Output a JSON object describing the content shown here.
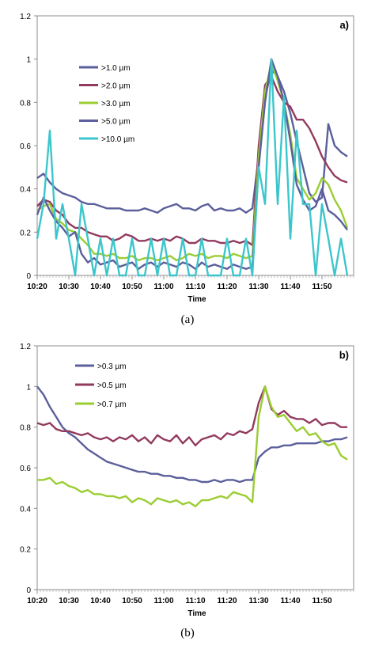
{
  "figure": {
    "caption_a": "(a)",
    "caption_b": "(b)"
  },
  "chart_data": [
    {
      "type": "line",
      "panel_label": "a)",
      "xlabel": "Time",
      "ylabel": "",
      "ylim": [
        0,
        1.2
      ],
      "yticks": [
        "0",
        "0.2",
        "0.4",
        "0.6",
        "0.8",
        "1",
        "1.2"
      ],
      "xlim": [
        "10:20",
        "12:00"
      ],
      "xticks": [
        "10:20",
        "10:30",
        "10:40",
        "10:50",
        "11:00",
        "11:10",
        "11:20",
        "11:30",
        "11:40",
        "11:50"
      ],
      "grid": false,
      "legend": "top-left",
      "series": [
        {
          "name": ">1.0 µm",
          "color": "#5b5f9b",
          "x": [
            "10:20",
            "10:22",
            "10:24",
            "10:26",
            "10:28",
            "10:30",
            "10:32",
            "10:34",
            "10:36",
            "10:38",
            "10:40",
            "10:42",
            "10:44",
            "10:46",
            "10:48",
            "10:50",
            "10:52",
            "10:54",
            "10:56",
            "10:58",
            "11:00",
            "11:02",
            "11:04",
            "11:06",
            "11:08",
            "11:10",
            "11:12",
            "11:14",
            "11:16",
            "11:18",
            "11:20",
            "11:22",
            "11:24",
            "11:26",
            "11:28",
            "11:30",
            "11:32",
            "11:34",
            "11:36",
            "11:38",
            "11:40",
            "11:42",
            "11:44",
            "11:46",
            "11:48",
            "11:50",
            "11:52",
            "11:54",
            "11:56",
            "11:58"
          ],
          "values": [
            0.45,
            0.47,
            0.43,
            0.4,
            0.38,
            0.37,
            0.36,
            0.34,
            0.33,
            0.33,
            0.32,
            0.31,
            0.31,
            0.31,
            0.3,
            0.3,
            0.3,
            0.31,
            0.3,
            0.29,
            0.31,
            0.32,
            0.33,
            0.31,
            0.31,
            0.3,
            0.32,
            0.33,
            0.3,
            0.31,
            0.3,
            0.3,
            0.31,
            0.29,
            0.31,
            0.55,
            0.82,
            0.95,
            0.92,
            0.85,
            0.75,
            0.62,
            0.5,
            0.38,
            0.34,
            0.36,
            0.7,
            0.6,
            0.57,
            0.55
          ]
        },
        {
          "name": ">2.0 µm",
          "color": "#923a5e",
          "x": [
            "10:20",
            "10:22",
            "10:24",
            "10:26",
            "10:28",
            "10:30",
            "10:32",
            "10:34",
            "10:36",
            "10:38",
            "10:40",
            "10:42",
            "10:44",
            "10:46",
            "10:48",
            "10:50",
            "10:52",
            "10:54",
            "10:56",
            "10:58",
            "11:00",
            "11:02",
            "11:04",
            "11:06",
            "11:08",
            "11:10",
            "11:12",
            "11:14",
            "11:16",
            "11:18",
            "11:20",
            "11:22",
            "11:24",
            "11:26",
            "11:28",
            "11:30",
            "11:32",
            "11:34",
            "11:36",
            "11:38",
            "11:40",
            "11:42",
            "11:44",
            "11:46",
            "11:48",
            "11:50",
            "11:52",
            "11:54",
            "11:56",
            "11:58"
          ],
          "values": [
            0.32,
            0.35,
            0.34,
            0.3,
            0.28,
            0.24,
            0.22,
            0.22,
            0.2,
            0.19,
            0.18,
            0.18,
            0.16,
            0.17,
            0.19,
            0.18,
            0.16,
            0.16,
            0.17,
            0.16,
            0.17,
            0.16,
            0.18,
            0.17,
            0.15,
            0.15,
            0.17,
            0.16,
            0.16,
            0.15,
            0.15,
            0.16,
            0.15,
            0.16,
            0.14,
            0.6,
            0.88,
            0.92,
            0.85,
            0.8,
            0.78,
            0.72,
            0.72,
            0.68,
            0.62,
            0.55,
            0.5,
            0.46,
            0.44,
            0.43
          ]
        },
        {
          "name": ">3.0 µm",
          "color": "#9acd32",
          "x": [
            "10:20",
            "10:22",
            "10:24",
            "10:26",
            "10:28",
            "10:30",
            "10:32",
            "10:34",
            "10:36",
            "10:38",
            "10:40",
            "10:42",
            "10:44",
            "10:46",
            "10:48",
            "10:50",
            "10:52",
            "10:54",
            "10:56",
            "10:58",
            "11:00",
            "11:02",
            "11:04",
            "11:06",
            "11:08",
            "11:10",
            "11:12",
            "11:14",
            "11:16",
            "11:18",
            "11:20",
            "11:22",
            "11:24",
            "11:26",
            "11:28",
            "11:30",
            "11:32",
            "11:34",
            "11:36",
            "11:38",
            "11:40",
            "11:42",
            "11:44",
            "11:46",
            "11:48",
            "11:50",
            "11:52",
            "11:54",
            "11:56",
            "11:58"
          ],
          "values": [
            0.3,
            0.32,
            0.33,
            0.26,
            0.24,
            0.21,
            0.2,
            0.17,
            0.14,
            0.1,
            0.1,
            0.09,
            0.1,
            0.08,
            0.08,
            0.09,
            0.07,
            0.08,
            0.08,
            0.07,
            0.08,
            0.09,
            0.07,
            0.08,
            0.1,
            0.09,
            0.1,
            0.08,
            0.09,
            0.09,
            0.08,
            0.1,
            0.09,
            0.08,
            0.09,
            0.55,
            0.85,
            0.98,
            0.9,
            0.8,
            0.65,
            0.45,
            0.4,
            0.35,
            0.38,
            0.45,
            0.42,
            0.35,
            0.3,
            0.22
          ]
        },
        {
          "name": ">5.0 µm",
          "color": "#5b5f9b",
          "x": [
            "10:20",
            "10:22",
            "10:24",
            "10:26",
            "10:28",
            "10:30",
            "10:32",
            "10:34",
            "10:36",
            "10:38",
            "10:40",
            "10:42",
            "10:44",
            "10:46",
            "10:48",
            "10:50",
            "10:52",
            "10:54",
            "10:56",
            "10:58",
            "11:00",
            "11:02",
            "11:04",
            "11:06",
            "11:08",
            "11:10",
            "11:12",
            "11:14",
            "11:16",
            "11:18",
            "11:20",
            "11:22",
            "11:24",
            "11:26",
            "11:28",
            "11:30",
            "11:32",
            "11:34",
            "11:36",
            "11:38",
            "11:40",
            "11:42",
            "11:44",
            "11:46",
            "11:48",
            "11:50",
            "11:52",
            "11:54",
            "11:56",
            "11:58"
          ],
          "values": [
            0.28,
            0.36,
            0.3,
            0.25,
            0.22,
            0.18,
            0.2,
            0.1,
            0.06,
            0.08,
            0.05,
            0.06,
            0.07,
            0.04,
            0.05,
            0.06,
            0.03,
            0.05,
            0.06,
            0.04,
            0.06,
            0.05,
            0.04,
            0.06,
            0.05,
            0.03,
            0.06,
            0.04,
            0.05,
            0.04,
            0.03,
            0.05,
            0.04,
            0.03,
            0.04,
            0.5,
            0.8,
            1.0,
            0.92,
            0.8,
            0.62,
            0.42,
            0.35,
            0.3,
            0.32,
            0.4,
            0.3,
            0.28,
            0.25,
            0.21
          ]
        },
        {
          "name": ">10.0 µm",
          "color": "#3cc6cc",
          "x": [
            "10:20",
            "10:22",
            "10:24",
            "10:26",
            "10:28",
            "10:30",
            "10:32",
            "10:34",
            "10:36",
            "10:38",
            "10:40",
            "10:42",
            "10:44",
            "10:46",
            "10:48",
            "10:50",
            "10:52",
            "10:54",
            "10:56",
            "10:58",
            "11:00",
            "11:02",
            "11:04",
            "11:06",
            "11:08",
            "11:10",
            "11:12",
            "11:14",
            "11:16",
            "11:18",
            "11:20",
            "11:22",
            "11:24",
            "11:26",
            "11:28",
            "11:30",
            "11:32",
            "11:34",
            "11:36",
            "11:38",
            "11:40",
            "11:42",
            "11:44",
            "11:46",
            "11:48",
            "11:50",
            "11:52",
            "11:54",
            "11:56",
            "11:58"
          ],
          "values": [
            0.17,
            0.33,
            0.67,
            0.17,
            0.33,
            0.17,
            0.0,
            0.33,
            0.17,
            0.0,
            0.17,
            0.0,
            0.17,
            0.0,
            0.0,
            0.17,
            0.0,
            0.0,
            0.17,
            0.0,
            0.17,
            0.0,
            0.0,
            0.17,
            0.0,
            0.0,
            0.17,
            0.0,
            0.0,
            0.0,
            0.17,
            0.0,
            0.0,
            0.17,
            0.0,
            0.5,
            0.33,
            1.0,
            0.33,
            0.83,
            0.17,
            0.67,
            0.33,
            0.33,
            0.0,
            0.33,
            0.17,
            0.0,
            0.17,
            0.0
          ]
        }
      ]
    },
    {
      "type": "line",
      "panel_label": "b)",
      "xlabel": "Time",
      "ylabel": "",
      "ylim": [
        0,
        1.2
      ],
      "yticks": [
        "0",
        "0.2",
        "0.4",
        "0.6",
        "0.8",
        "1",
        "1.2"
      ],
      "xlim": [
        "10:20",
        "12:00"
      ],
      "xticks": [
        "10:20",
        "10:30",
        "10:40",
        "10:50",
        "11:00",
        "11:10",
        "11:20",
        "11:30",
        "11:40",
        "11:50"
      ],
      "grid": false,
      "legend": "top-left",
      "series": [
        {
          "name": ">0.3 µm",
          "color": "#5b5f9b",
          "x": [
            "10:20",
            "10:22",
            "10:24",
            "10:26",
            "10:28",
            "10:30",
            "10:32",
            "10:34",
            "10:36",
            "10:38",
            "10:40",
            "10:42",
            "10:44",
            "10:46",
            "10:48",
            "10:50",
            "10:52",
            "10:54",
            "10:56",
            "10:58",
            "11:00",
            "11:02",
            "11:04",
            "11:06",
            "11:08",
            "11:10",
            "11:12",
            "11:14",
            "11:16",
            "11:18",
            "11:20",
            "11:22",
            "11:24",
            "11:26",
            "11:28",
            "11:30",
            "11:32",
            "11:34",
            "11:36",
            "11:38",
            "11:40",
            "11:42",
            "11:44",
            "11:46",
            "11:48",
            "11:50",
            "11:52",
            "11:54",
            "11:56",
            "11:58"
          ],
          "values": [
            1.0,
            0.96,
            0.9,
            0.85,
            0.8,
            0.77,
            0.75,
            0.72,
            0.69,
            0.67,
            0.65,
            0.63,
            0.62,
            0.61,
            0.6,
            0.59,
            0.58,
            0.58,
            0.57,
            0.57,
            0.56,
            0.56,
            0.55,
            0.55,
            0.54,
            0.54,
            0.53,
            0.53,
            0.54,
            0.53,
            0.54,
            0.54,
            0.53,
            0.54,
            0.54,
            0.65,
            0.68,
            0.7,
            0.7,
            0.71,
            0.71,
            0.72,
            0.72,
            0.72,
            0.72,
            0.73,
            0.73,
            0.74,
            0.74,
            0.75
          ]
        },
        {
          "name": ">0.5 µm",
          "color": "#923a5e",
          "x": [
            "10:20",
            "10:22",
            "10:24",
            "10:26",
            "10:28",
            "10:30",
            "10:32",
            "10:34",
            "10:36",
            "10:38",
            "10:40",
            "10:42",
            "10:44",
            "10:46",
            "10:48",
            "10:50",
            "10:52",
            "10:54",
            "10:56",
            "10:58",
            "11:00",
            "11:02",
            "11:04",
            "11:06",
            "11:08",
            "11:10",
            "11:12",
            "11:14",
            "11:16",
            "11:18",
            "11:20",
            "11:22",
            "11:24",
            "11:26",
            "11:28",
            "11:30",
            "11:32",
            "11:34",
            "11:36",
            "11:38",
            "11:40",
            "11:42",
            "11:44",
            "11:46",
            "11:48",
            "11:50",
            "11:52",
            "11:54",
            "11:56",
            "11:58"
          ],
          "values": [
            0.82,
            0.81,
            0.82,
            0.79,
            0.78,
            0.78,
            0.77,
            0.76,
            0.77,
            0.75,
            0.74,
            0.75,
            0.73,
            0.75,
            0.74,
            0.76,
            0.73,
            0.75,
            0.72,
            0.76,
            0.74,
            0.73,
            0.76,
            0.72,
            0.75,
            0.71,
            0.74,
            0.75,
            0.76,
            0.74,
            0.77,
            0.76,
            0.78,
            0.77,
            0.79,
            0.92,
            1.0,
            0.89,
            0.86,
            0.88,
            0.85,
            0.84,
            0.84,
            0.82,
            0.84,
            0.81,
            0.82,
            0.82,
            0.8,
            0.8
          ]
        },
        {
          "name": ">0.7 µm",
          "color": "#9acd32",
          "x": [
            "10:20",
            "10:22",
            "10:24",
            "10:26",
            "10:28",
            "10:30",
            "10:32",
            "10:34",
            "10:36",
            "10:38",
            "10:40",
            "10:42",
            "10:44",
            "10:46",
            "10:48",
            "10:50",
            "10:52",
            "10:54",
            "10:56",
            "10:58",
            "11:00",
            "11:02",
            "11:04",
            "11:06",
            "11:08",
            "11:10",
            "11:12",
            "11:14",
            "11:16",
            "11:18",
            "11:20",
            "11:22",
            "11:24",
            "11:26",
            "11:28",
            "11:30",
            "11:32",
            "11:34",
            "11:36",
            "11:38",
            "11:40",
            "11:42",
            "11:44",
            "11:46",
            "11:48",
            "11:50",
            "11:52",
            "11:54",
            "11:56",
            "11:58"
          ],
          "values": [
            0.54,
            0.54,
            0.55,
            0.52,
            0.53,
            0.51,
            0.5,
            0.48,
            0.49,
            0.47,
            0.47,
            0.46,
            0.46,
            0.45,
            0.46,
            0.43,
            0.45,
            0.44,
            0.42,
            0.45,
            0.44,
            0.43,
            0.44,
            0.42,
            0.43,
            0.41,
            0.44,
            0.44,
            0.45,
            0.46,
            0.45,
            0.48,
            0.47,
            0.46,
            0.43,
            0.85,
            1.0,
            0.9,
            0.85,
            0.86,
            0.82,
            0.78,
            0.8,
            0.76,
            0.77,
            0.73,
            0.71,
            0.72,
            0.66,
            0.64
          ]
        }
      ]
    }
  ]
}
